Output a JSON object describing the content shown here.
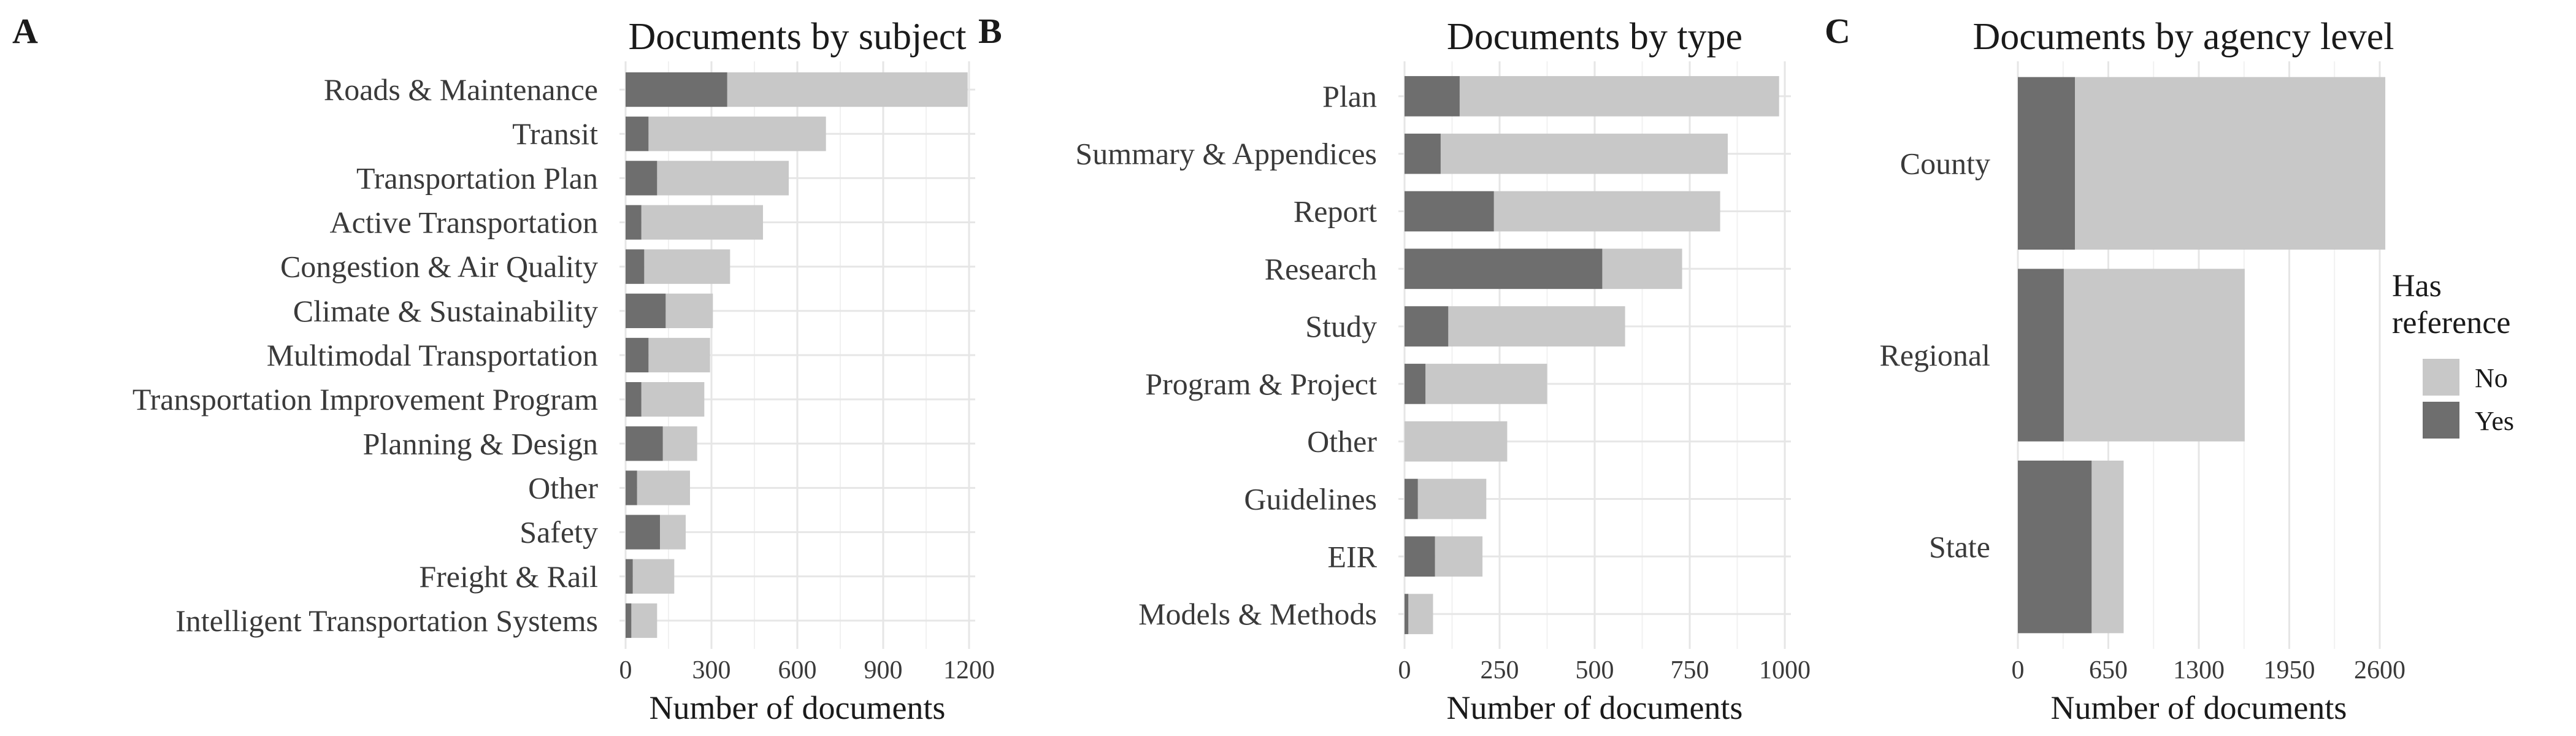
{
  "colors": {
    "no": "#c8c8c8",
    "yes": "#6e6e6e"
  },
  "legend": {
    "title_line1": "Has",
    "title_line2": "reference",
    "items": [
      {
        "key": "no",
        "label": "No",
        "color": "#c8c8c8"
      },
      {
        "key": "yes",
        "label": "Yes",
        "color": "#6e6e6e"
      }
    ]
  },
  "chart_data": [
    {
      "type": "bar",
      "orientation": "horizontal",
      "stacked": true,
      "panel_letter": "A",
      "title": "Documents by subject",
      "xlabel": "Number of documents",
      "xlim": [
        0,
        1200
      ],
      "xticks": [
        0,
        300,
        600,
        900,
        1200
      ],
      "categories": [
        "Intelligent Transportation Systems",
        "Freight & Rail",
        "Safety",
        "Other",
        "Planning & Design",
        "Transportation Improvement Program",
        "Multimodal Transportation",
        "Climate & Sustainability",
        "Congestion & Air Quality",
        "Active Transportation",
        "Transportation Plan",
        "Transit",
        "Roads & Maintenance"
      ],
      "series": [
        {
          "name": "Yes",
          "values": [
            20,
            25,
            120,
            40,
            130,
            55,
            80,
            140,
            65,
            55,
            110,
            80,
            355
          ]
        },
        {
          "name": "No",
          "values": [
            90,
            145,
            90,
            185,
            120,
            220,
            215,
            165,
            300,
            425,
            460,
            620,
            840
          ]
        }
      ]
    },
    {
      "type": "bar",
      "orientation": "horizontal",
      "stacked": true,
      "panel_letter": "B",
      "title": "Documents by type",
      "xlabel": "Number of documents",
      "xlim": [
        0,
        1000
      ],
      "xticks": [
        0,
        250,
        500,
        750,
        1000
      ],
      "categories": [
        "Models & Methods",
        "EIR",
        "Guidelines",
        "Other",
        "Program & Project",
        "Study",
        "Research",
        "Report",
        "Summary & Appendices",
        "Plan"
      ],
      "series": [
        {
          "name": "Yes",
          "values": [
            10,
            80,
            35,
            0,
            55,
            115,
            520,
            235,
            95,
            145
          ]
        },
        {
          "name": "No",
          "values": [
            65,
            125,
            180,
            270,
            320,
            465,
            210,
            595,
            755,
            840
          ]
        }
      ]
    },
    {
      "type": "bar",
      "orientation": "horizontal",
      "stacked": true,
      "panel_letter": "C",
      "title": "Documents by agency level",
      "xlabel": "Number of documents",
      "xlim": [
        0,
        2600
      ],
      "xticks": [
        0,
        650,
        1300,
        1950,
        2600
      ],
      "categories": [
        "State",
        "Regional",
        "County"
      ],
      "series": [
        {
          "name": "Yes",
          "values": [
            530,
            330,
            410
          ]
        },
        {
          "name": "No",
          "values": [
            230,
            1300,
            2230
          ]
        }
      ]
    }
  ]
}
